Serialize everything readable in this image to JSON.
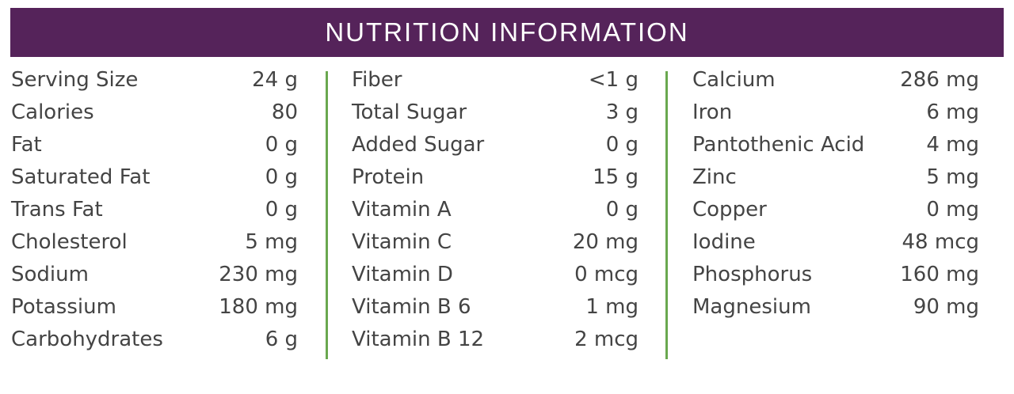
{
  "title": "NUTRITION INFORMATION",
  "colors": {
    "header_bg": "#55235a",
    "divider": "#6aa84f",
    "text": "#444444"
  },
  "columns": [
    [
      {
        "label": "Serving Size",
        "value": "24 g"
      },
      {
        "label": "Calories",
        "value": "80"
      },
      {
        "label": "Fat",
        "value": "0 g"
      },
      {
        "label": "Saturated Fat",
        "value": "0 g"
      },
      {
        "label": "Trans Fat",
        "value": "0 g"
      },
      {
        "label": "Cholesterol",
        "value": "5 mg"
      },
      {
        "label": "Sodium",
        "value": "230 mg"
      },
      {
        "label": "Potassium",
        "value": "180 mg"
      },
      {
        "label": "Carbohydrates",
        "value": "6 g"
      }
    ],
    [
      {
        "label": "Fiber",
        "value": "<1 g"
      },
      {
        "label": "Total Sugar",
        "value": "3 g"
      },
      {
        "label": "Added Sugar",
        "value": "0 g"
      },
      {
        "label": "Protein",
        "value": "15 g"
      },
      {
        "label": "Vitamin A",
        "value": "0 g"
      },
      {
        "label": "Vitamin C",
        "value": "20 mg"
      },
      {
        "label": "Vitamin D",
        "value": "0 mcg"
      },
      {
        "label": "Vitamin B 6",
        "value": "1 mg"
      },
      {
        "label": "Vitamin B 12",
        "value": "2 mcg"
      }
    ],
    [
      {
        "label": "Calcium",
        "value": "286 mg"
      },
      {
        "label": "Iron",
        "value": "6 mg"
      },
      {
        "label": "Pantothenic Acid",
        "value": "4 mg"
      },
      {
        "label": "Zinc",
        "value": "5 mg"
      },
      {
        "label": "Copper",
        "value": "0 mg"
      },
      {
        "label": "Iodine",
        "value": "48 mcg"
      },
      {
        "label": "Phosphorus",
        "value": "160 mg"
      },
      {
        "label": "Magnesium",
        "value": "90 mg"
      }
    ]
  ]
}
